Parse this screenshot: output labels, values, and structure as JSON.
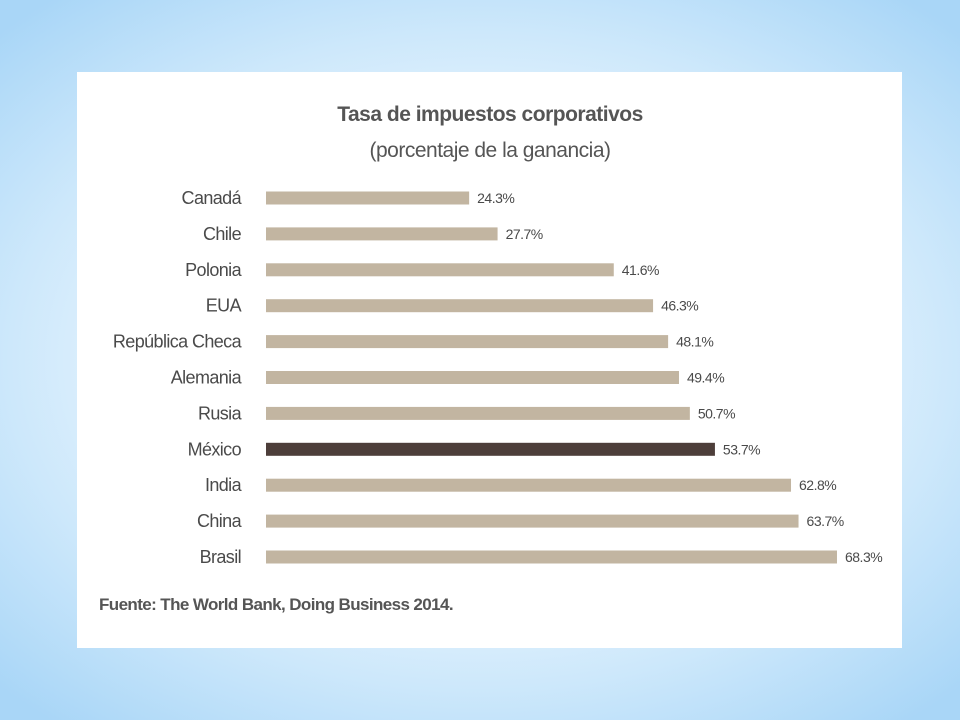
{
  "chart_data": {
    "type": "bar",
    "orientation": "horizontal",
    "title": "Tasa de impuestos corporativos",
    "subtitle": "(porcentaje de la ganancia)",
    "categories": [
      "Canadá",
      "Chile",
      "Polonia",
      "EUA",
      "República Checa",
      "Alemania",
      "Rusia",
      "México",
      "India",
      "China",
      "Brasil"
    ],
    "values": [
      24.3,
      27.7,
      41.6,
      46.3,
      48.1,
      49.4,
      50.7,
      53.7,
      62.8,
      63.7,
      68.3
    ],
    "value_labels": [
      "24.3%",
      "27.7%",
      "41.6%",
      "46.3%",
      "48.1%",
      "49.4%",
      "50.7%",
      "53.7%",
      "62.8%",
      "63.7%",
      "68.3%"
    ],
    "highlight_category": "México",
    "grid": false,
    "legend": "none",
    "xlim": [
      0,
      70
    ],
    "colors": {
      "bar": "#c2b5a1",
      "highlight": "#4d3e3a",
      "text": "#4a4a4a"
    }
  },
  "source": "Fuente: The World Bank, Doing Business 2014."
}
